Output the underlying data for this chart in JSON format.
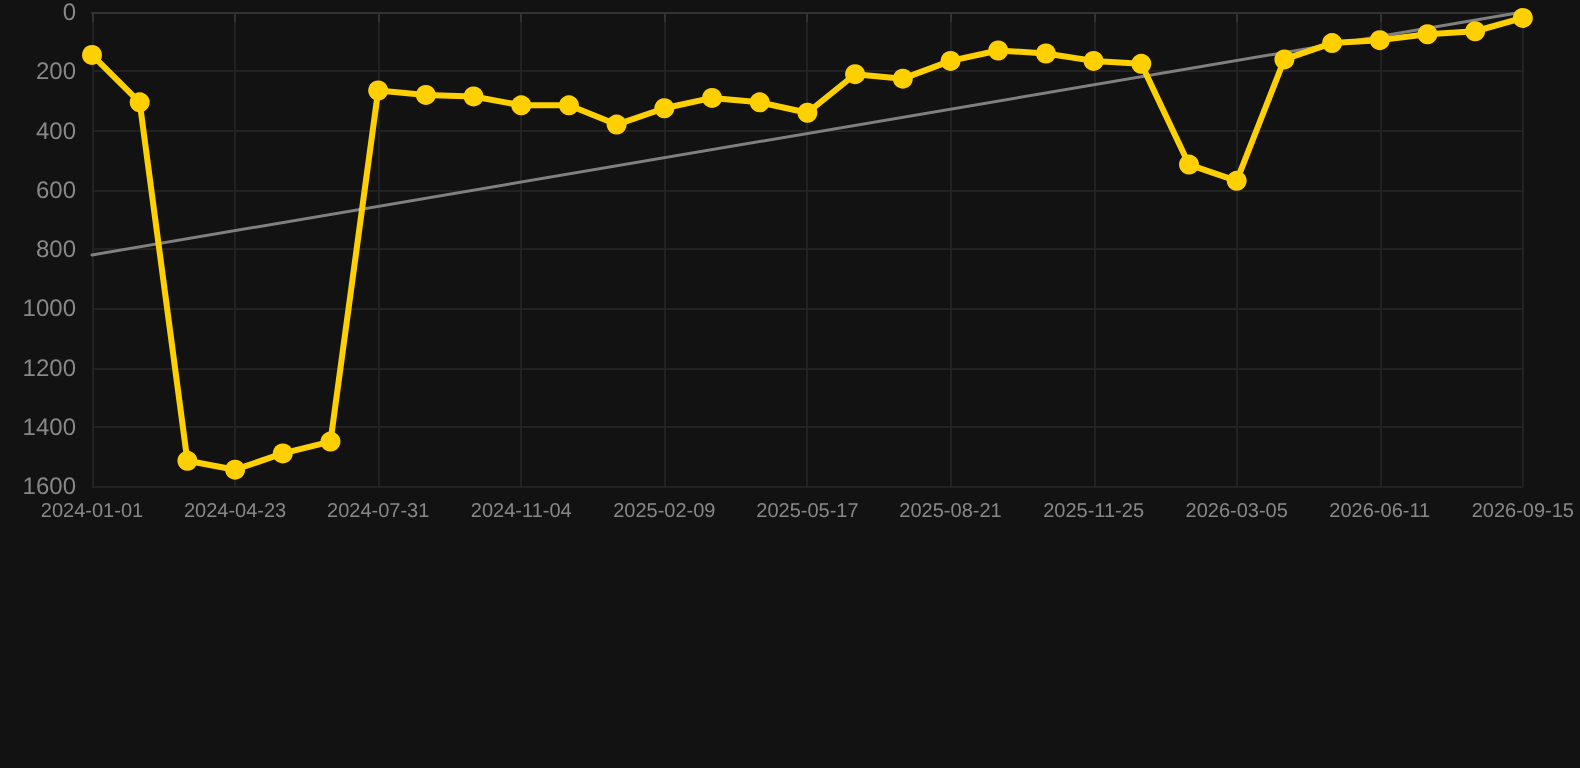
{
  "chart_data": {
    "type": "line",
    "categories": [
      "2024-01-01",
      null,
      null,
      "2024-04-23",
      null,
      null,
      "2024-07-31",
      null,
      null,
      "2024-11-04",
      null,
      null,
      "2025-02-09",
      null,
      null,
      "2025-05-17",
      null,
      null,
      "2025-08-21",
      null,
      null,
      "2025-11-25",
      null,
      null,
      "2026-03-05",
      null,
      null,
      "2026-06-11",
      null,
      null,
      "2026-09-15"
    ],
    "series": [
      {
        "color": "#ffd000",
        "marker": "circle",
        "values": [
          145,
          305,
          1515,
          1545,
          1490,
          1450,
          265,
          280,
          285,
          315,
          315,
          380,
          325,
          290,
          305,
          340,
          210,
          225,
          165,
          130,
          140,
          165,
          175,
          515,
          570,
          160,
          105,
          95,
          75,
          65,
          20
        ]
      },
      {
        "type": "line",
        "color": "#808080",
        "marker": "none",
        "values": [
          820,
          null,
          null,
          null,
          null,
          null,
          null,
          null,
          null,
          null,
          null,
          null,
          null,
          null,
          null,
          null,
          null,
          null,
          null,
          null,
          null,
          null,
          null,
          null,
          null,
          null,
          null,
          null,
          null,
          null,
          0
        ]
      }
    ],
    "ylim": [
      1600,
      0
    ],
    "yticks": [
      0,
      200,
      400,
      600,
      800,
      1000,
      1200,
      1400,
      1600
    ],
    "grid": true,
    "line_style": "solid"
  }
}
